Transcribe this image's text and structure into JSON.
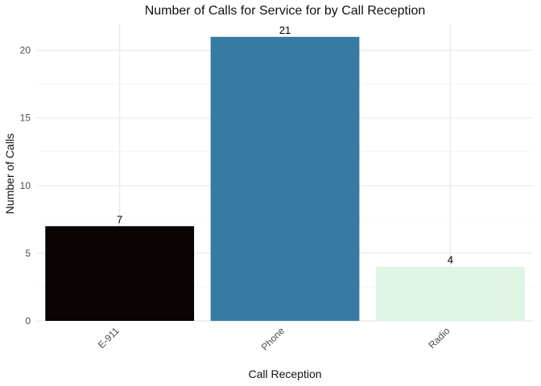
{
  "chart_data": {
    "type": "bar",
    "title": "Number of Calls for Service for by Call Reception",
    "xlabel": "Call Reception",
    "ylabel": "Number of Calls",
    "categories": [
      "E-911",
      "Phone",
      "Radio"
    ],
    "values": [
      7,
      21,
      4
    ],
    "colors": [
      "#0b0405",
      "#357ba2",
      "#def5e5"
    ],
    "ylim": [
      0,
      22
    ],
    "yticks": [
      0,
      5,
      10,
      15,
      20
    ],
    "grid": true,
    "x_tick_rotation_deg": 45
  }
}
